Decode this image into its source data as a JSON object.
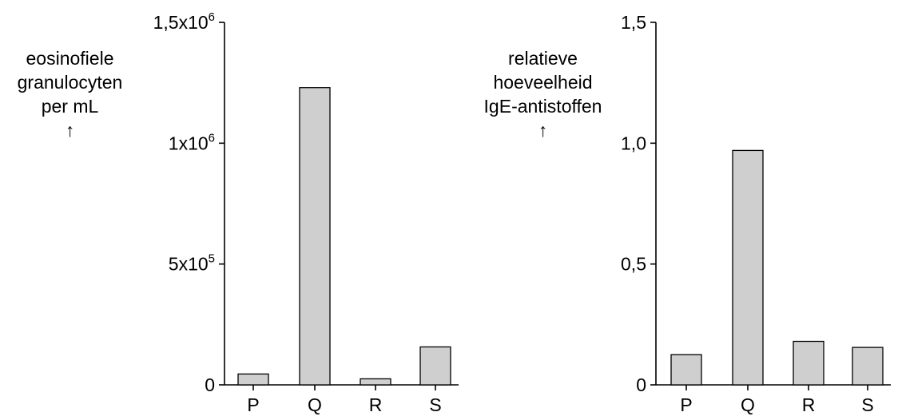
{
  "chart_data": [
    {
      "type": "bar",
      "categories": [
        "P",
        "Q",
        "R",
        "S"
      ],
      "values": [
        45000,
        1230000,
        25000,
        157000
      ],
      "ylabel_lines": [
        "eosinofiele",
        "granulocyten",
        "per mL"
      ],
      "ylim": [
        0,
        1500000
      ],
      "yticks": [
        {
          "value": 0,
          "base": "0",
          "exp": ""
        },
        {
          "value": 500000,
          "base": "5x10",
          "exp": "5"
        },
        {
          "value": 1000000,
          "base": "1x10",
          "exp": "6"
        },
        {
          "value": 1500000,
          "base": "1,5x10",
          "exp": "6"
        }
      ],
      "bar_color": "#cfcfcf",
      "grid": false
    },
    {
      "type": "bar",
      "categories": [
        "P",
        "Q",
        "R",
        "S"
      ],
      "values": [
        0.125,
        0.97,
        0.18,
        0.155
      ],
      "ylabel_lines": [
        "relatieve",
        "hoeveelheid",
        "IgE-antistoffen"
      ],
      "ylim": [
        0,
        1.5
      ],
      "yticks": [
        {
          "value": 0,
          "base": "0",
          "exp": ""
        },
        {
          "value": 0.5,
          "base": "0,5",
          "exp": ""
        },
        {
          "value": 1.0,
          "base": "1,0",
          "exp": ""
        },
        {
          "value": 1.5,
          "base": "1,5",
          "exp": ""
        }
      ],
      "bar_color": "#cfcfcf",
      "grid": false
    }
  ],
  "arrow_glyph": "↑"
}
